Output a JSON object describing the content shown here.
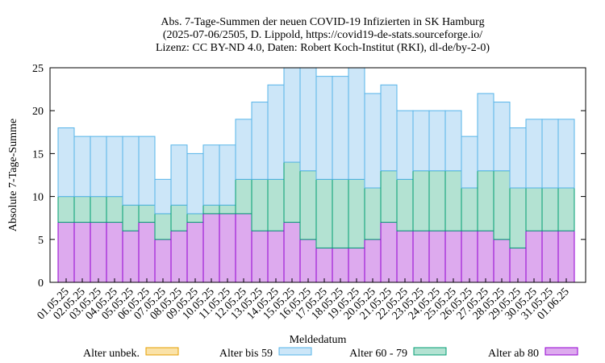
{
  "chart_data": {
    "type": "stacked-bar",
    "title": [
      "Abs. 7-Tage-Summen der neuen COVID-19 Infizierten in SK Hamburg",
      "(2025-07-06/2505, D. Lippold, https://covid19-de-stats.sourceforge.io/",
      "Lizenz: CC BY-ND 4.0, Daten: Robert Koch-Institut (RKI), dl-de/by-2-0)"
    ],
    "x_label": "Meldedatum",
    "y_label": "Absolute 7-Tage-Summe",
    "categories": [
      "01.05.25",
      "02.05.25",
      "03.05.25",
      "04.05.25",
      "05.05.25",
      "06.05.25",
      "07.05.25",
      "08.05.25",
      "09.05.25",
      "10.05.25",
      "11.05.25",
      "12.05.25",
      "13.05.25",
      "14.05.25",
      "15.05.25",
      "16.05.25",
      "17.05.25",
      "18.05.25",
      "19.05.25",
      "20.05.25",
      "21.05.25",
      "22.05.25",
      "23.05.25",
      "24.05.25",
      "25.05.25",
      "26.05.25",
      "27.05.25",
      "28.05.25",
      "29.05.25",
      "30.05.25",
      "31.05.25",
      "01.06.25"
    ],
    "series": [
      {
        "name": "Alter ab 80",
        "color": "#9400d3",
        "fill": "#ddaaee",
        "values": [
          7,
          7,
          7,
          7,
          6,
          7,
          5,
          6,
          7,
          8,
          8,
          8,
          6,
          6,
          7,
          5,
          4,
          4,
          4,
          5,
          7,
          6,
          6,
          6,
          6,
          6,
          6,
          5,
          4,
          6,
          6,
          6
        ]
      },
      {
        "name": "Alter 60 - 79",
        "color": "#009e73",
        "fill": "#b3e2d2",
        "values": [
          3,
          3,
          3,
          3,
          3,
          2,
          3,
          3,
          1,
          1,
          1,
          4,
          6,
          6,
          7,
          8,
          8,
          8,
          8,
          6,
          6,
          6,
          7,
          7,
          7,
          5,
          7,
          8,
          7,
          5,
          5,
          5
        ]
      },
      {
        "name": "Alter bis 59",
        "color": "#56b4e9",
        "fill": "#cce6f8",
        "values": [
          8,
          7,
          7,
          7,
          8,
          8,
          4,
          7,
          7,
          7,
          7,
          7,
          9,
          11,
          11,
          12,
          12,
          12,
          13,
          11,
          10,
          8,
          7,
          7,
          7,
          6,
          9,
          8,
          7,
          8,
          8,
          8
        ]
      },
      {
        "name": "Alter unbek.",
        "color": "#e69f00",
        "fill": "#fae2a8",
        "values": [
          0,
          0,
          0,
          0,
          0,
          0,
          0,
          0,
          0,
          0,
          0,
          0,
          0,
          0,
          0,
          0,
          0,
          0,
          0,
          0,
          0,
          0,
          0,
          0,
          0,
          0,
          0,
          0,
          0,
          0,
          0,
          0
        ]
      }
    ],
    "legend_order": [
      3,
      2,
      1,
      0
    ],
    "ylim": [
      0,
      25
    ],
    "yticks": [
      0,
      5,
      10,
      15,
      20,
      25
    ]
  }
}
